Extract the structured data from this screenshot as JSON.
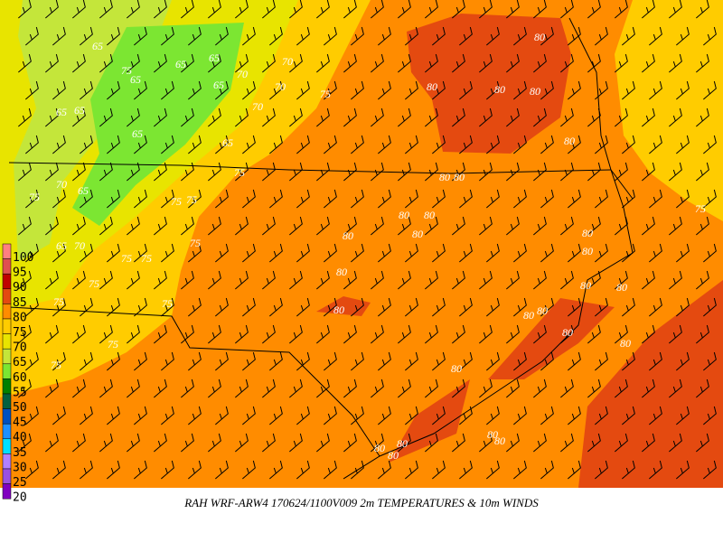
{
  "caption": "RAH WRF-ARW4 170624/1100V009  2m TEMPERATURES & 10m WINDS",
  "colorbar": {
    "levels": [
      100,
      95,
      90,
      85,
      80,
      75,
      70,
      65,
      60,
      55,
      50,
      45,
      40,
      35,
      30,
      25,
      20
    ],
    "colors": [
      "#ff8080",
      "#e05050",
      "#c00000",
      "#e44a10",
      "#ff8c00",
      "#ffcc00",
      "#e8e400",
      "#c4e63a",
      "#7ce632",
      "#008000",
      "#006040",
      "#0050c0",
      "#1e90ff",
      "#00e0ff",
      "#b080ff",
      "#9a50e0",
      "#8000c0"
    ]
  },
  "contour_labels": [
    65,
    65,
    65,
    65,
    65,
    65,
    65,
    65,
    65,
    65,
    65,
    70,
    70,
    70,
    70,
    70,
    70,
    75,
    75,
    75,
    75,
    75,
    75,
    75,
    75,
    75,
    75,
    75,
    75,
    75,
    75,
    75,
    80,
    80,
    80,
    80,
    80,
    80,
    80,
    80,
    80,
    80,
    80,
    80,
    80,
    80,
    80,
    80,
    80,
    80,
    80,
    80,
    80,
    80,
    80,
    80,
    80,
    80,
    80
  ]
}
